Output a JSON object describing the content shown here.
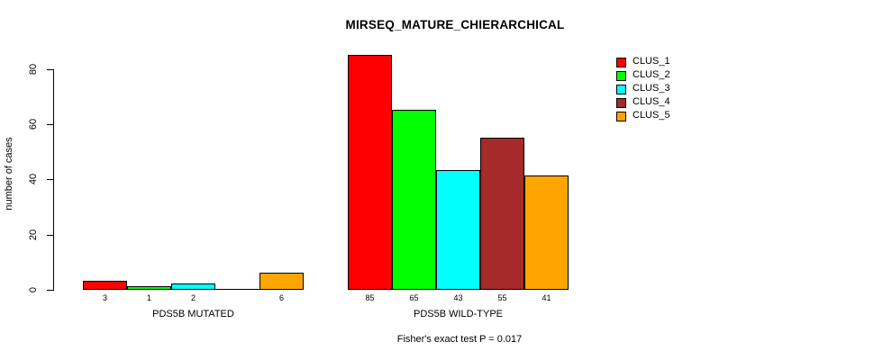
{
  "chart_data": {
    "type": "bar",
    "title": "MIRSEQ_MATURE_CHIERARCHICAL",
    "ylabel": "number of cases",
    "xlabel": "",
    "y_ticks": [
      0,
      20,
      40,
      60,
      80
    ],
    "ylim": [
      0,
      85
    ],
    "grid": false,
    "legend_position": "top-right",
    "series_labels": [
      "CLUS_1",
      "CLUS_2",
      "CLUS_3",
      "CLUS_4",
      "CLUS_5"
    ],
    "colors": [
      "#FF0000",
      "#00FF00",
      "#00FFFF",
      "#A52A2A",
      "#FFA500"
    ],
    "groups": [
      {
        "label": "PDS5B MUTATED",
        "values": [
          3,
          1,
          2,
          0,
          6
        ],
        "bar_labels": [
          "3",
          "1",
          "2",
          "",
          "6"
        ]
      },
      {
        "label": "PDS5B WILD-TYPE",
        "values": [
          85,
          65,
          43,
          55,
          41
        ],
        "bar_labels": [
          "85",
          "65",
          "43",
          "55",
          "41"
        ]
      }
    ],
    "annotation": "Fisher's exact test P = 0.017"
  }
}
